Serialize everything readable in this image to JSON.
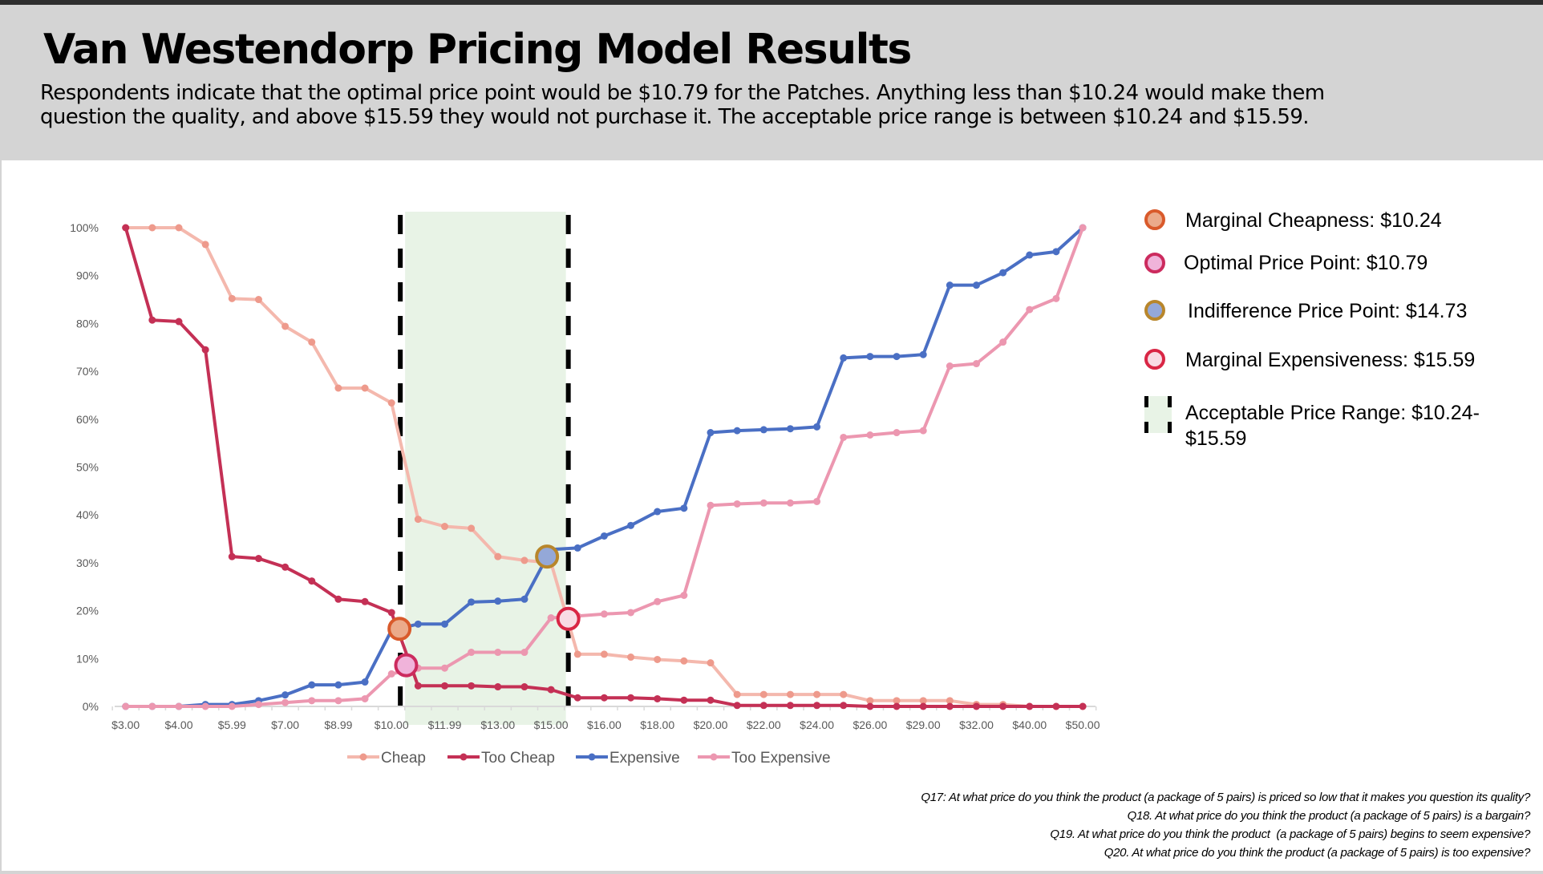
{
  "header": {
    "title": "Van Westendorp Pricing Model Results",
    "subtitle": "Respondents indicate that the optimal price point would be $10.79 for the Patches. Anything less than $10.24 would make them question the quality, and above $15.59 they would not purchase it. The acceptable price range is between $10.24 and $15.59."
  },
  "key_legend": [
    {
      "label": "Marginal Cheapness: $10.24",
      "fill": "#ebaa8a",
      "stroke": "#d95a2b"
    },
    {
      "label": "Optimal Price Point: $10.79",
      "fill": "#f0b3da",
      "stroke": "#cc2b5e"
    },
    {
      "label": "Indifference Price Point: $14.73",
      "fill": "#94a8d8",
      "stroke": "#b8862b"
    },
    {
      "label": "Marginal Expensiveness: $15.59",
      "fill": "#f8dbe4",
      "stroke": "#d92645"
    },
    {
      "label_line1": "Acceptable Price Range: $10.24-",
      "label_line2": "$15.59",
      "fill": "#e8f3e6",
      "stroke": "#000000"
    }
  ],
  "footnotes": [
    "Q17: At what price do you think the product (a package of 5 pairs) is priced so low that it makes you question its quality?",
    "Q18. At what price do you think the product (a package of 5 pairs) is a bargain?",
    "Q19. At what price do you think the product  (a package of 5 pairs) begins to seem expensive?",
    "Q20. At what price do you think the product (a package of 5 pairs) is too expensive?"
  ],
  "chart_data": {
    "type": "line",
    "title": "",
    "xlabel": "",
    "ylabel": "",
    "ylim": [
      0,
      100
    ],
    "y_ticks": [
      "0%",
      "10%",
      "20%",
      "30%",
      "40%",
      "50%",
      "60%",
      "70%",
      "80%",
      "90%",
      "100%"
    ],
    "x_tick_labels": [
      "$3.00",
      "$4.00",
      "$5.99",
      "$7.00",
      "$8.99",
      "$10.00",
      "$11.99",
      "$13.00",
      "$15.00",
      "$16.00",
      "$18.00",
      "$20.00",
      "$22.00",
      "$24.00",
      "$26.00",
      "$29.00",
      "$32.00",
      "$40.00",
      "$50.00"
    ],
    "x_label_every": 2,
    "point_count": 37,
    "grid": false,
    "legend_position": "bottom",
    "series": [
      {
        "name": "Cheap",
        "color": "#f4b8ad",
        "marker": "#ee9a8c",
        "values": [
          100,
          100,
          100,
          96.5,
          85.2,
          85.0,
          79.4,
          76.1,
          66.5,
          66.5,
          63.4,
          39.1,
          37.6,
          37.2,
          31.3,
          30.5,
          30.0,
          10.9,
          10.9,
          10.3,
          9.8,
          9.5,
          9.1,
          2.5,
          2.5,
          2.5,
          2.5,
          2.5,
          1.2,
          1.2,
          1.2,
          1.2,
          0.4,
          0.4,
          0,
          0,
          0
        ]
      },
      {
        "name": "Too Cheap",
        "color": "#c43055",
        "marker": "#c43055",
        "values": [
          100,
          80.7,
          80.4,
          74.5,
          31.3,
          30.9,
          29.1,
          26.2,
          22.4,
          21.9,
          19.6,
          4.3,
          4.3,
          4.3,
          4.1,
          4.1,
          3.5,
          1.8,
          1.8,
          1.8,
          1.6,
          1.3,
          1.3,
          0.2,
          0.2,
          0.2,
          0.2,
          0.2,
          0,
          0,
          0,
          0,
          0,
          0,
          0,
          0,
          0
        ]
      },
      {
        "name": "Expensive",
        "color": "#4a6fc4",
        "marker": "#4a6fc4",
        "values": [
          0,
          0,
          0,
          0.4,
          0.4,
          1.2,
          2.4,
          4.5,
          4.5,
          5.1,
          15.9,
          17.2,
          17.2,
          21.8,
          22.0,
          22.4,
          32.8,
          33.1,
          35.6,
          37.8,
          40.7,
          41.4,
          57.2,
          57.6,
          57.8,
          58.0,
          58.4,
          72.8,
          73.1,
          73.1,
          73.5,
          88.0,
          88.0,
          90.6,
          94.3,
          95.0,
          100
        ]
      },
      {
        "name": "Too Expensive",
        "color": "#ec97b0",
        "marker": "#ec97b0",
        "values": [
          0,
          0,
          0,
          0,
          0,
          0.4,
          0.8,
          1.2,
          1.2,
          1.6,
          6.8,
          8.0,
          8.0,
          11.3,
          11.3,
          11.3,
          18.5,
          18.9,
          19.3,
          19.6,
          21.9,
          23.2,
          42.0,
          42.3,
          42.5,
          42.5,
          42.8,
          56.2,
          56.7,
          57.2,
          57.6,
          71.1,
          71.6,
          76.1,
          82.9,
          85.2,
          100
        ]
      }
    ],
    "acceptable_range": {
      "from_index": 10.3,
      "to_index": 16.65,
      "fill": "#e8f3e6"
    },
    "annotations": [
      {
        "name": "Marginal Cheapness",
        "price": "$10.24",
        "index": 10.3,
        "value": 16.2,
        "fill": "#ebaa8a",
        "stroke": "#d95a2b"
      },
      {
        "name": "Optimal Price Point",
        "price": "$10.79",
        "index": 10.55,
        "value": 8.6,
        "fill": "#f0b3da",
        "stroke": "#cc2b5e"
      },
      {
        "name": "Indifference Price Point",
        "price": "$14.73",
        "index": 15.85,
        "value": 31.3,
        "fill": "#94a8d8",
        "stroke": "#b8862b"
      },
      {
        "name": "Marginal Expensiveness",
        "price": "$15.59",
        "index": 16.65,
        "value": 18.3,
        "fill": "#f8dbe4",
        "stroke": "#d92645"
      }
    ]
  }
}
